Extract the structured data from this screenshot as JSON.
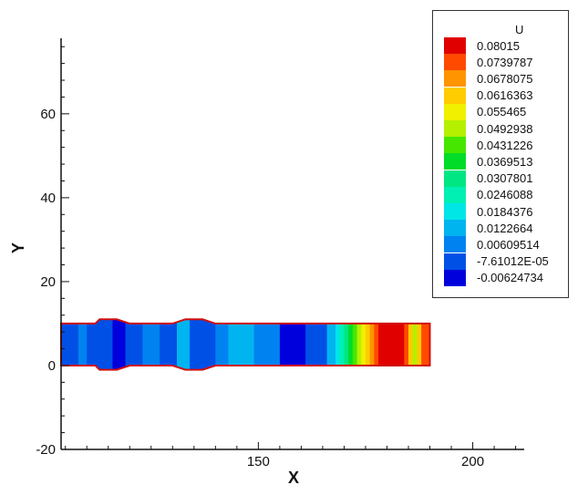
{
  "chart_data": {
    "type": "heatmap",
    "xlabel": "X",
    "ylabel": "Y",
    "xlim": [
      104,
      212
    ],
    "ylim": [
      -20,
      78
    ],
    "x_ticks": [
      150,
      200
    ],
    "y_ticks": [
      -20,
      0,
      20,
      40,
      60
    ],
    "x_tick_labels": [
      "150",
      "200"
    ],
    "y_tick_labels": [
      "-20",
      "0",
      "20",
      "40",
      "60"
    ],
    "grid": false,
    "legend": {
      "title": "U",
      "placement": "top-right",
      "levels": [
        {
          "label": "0.08015",
          "value": 0.08015,
          "color": "#e00000"
        },
        {
          "label": "0.0739787",
          "value": 0.0739787,
          "color": "#ff4a00"
        },
        {
          "label": "0.0678075",
          "value": 0.0678075,
          "color": "#ff9400"
        },
        {
          "label": "0.0616363",
          "value": 0.0616363,
          "color": "#ffcc00"
        },
        {
          "label": "0.055465",
          "value": 0.055465,
          "color": "#f0f000"
        },
        {
          "label": "0.0492938",
          "value": 0.0492938,
          "color": "#b4f000"
        },
        {
          "label": "0.0431226",
          "value": 0.0431226,
          "color": "#46e600"
        },
        {
          "label": "0.0369513",
          "value": 0.0369513,
          "color": "#00dc28"
        },
        {
          "label": "0.0307801",
          "value": 0.0307801,
          "color": "#00e682"
        },
        {
          "label": "0.0246088",
          "value": 0.0246088,
          "color": "#00f0b4"
        },
        {
          "label": "0.0184376",
          "value": 0.0184376,
          "color": "#00e6e6"
        },
        {
          "label": "0.0122664",
          "value": 0.0122664,
          "color": "#00b4f0"
        },
        {
          "label": "0.00609514",
          "value": 0.00609514,
          "color": "#0082f0"
        },
        {
          "label": "-7.61012E-05",
          "value": -7.61012e-05,
          "color": "#0050e6"
        },
        {
          "label": "-0.00624734",
          "value": -0.00624734,
          "color": "#0000dc"
        }
      ]
    },
    "domain_outline": {
      "color": "#d01010",
      "points": [
        [
          104,
          10
        ],
        [
          112,
          10
        ],
        [
          113,
          11
        ],
        [
          117,
          11
        ],
        [
          120,
          10
        ],
        [
          130,
          10
        ],
        [
          133,
          11
        ],
        [
          137,
          11
        ],
        [
          140,
          10
        ],
        [
          190,
          10
        ],
        [
          190,
          0
        ],
        [
          140,
          0
        ],
        [
          137,
          -1
        ],
        [
          133,
          -1
        ],
        [
          130,
          0
        ],
        [
          120,
          0
        ],
        [
          117,
          -1
        ],
        [
          113,
          -1
        ],
        [
          112,
          0
        ],
        [
          104,
          0
        ]
      ]
    },
    "field_bands": [
      {
        "x0": 104,
        "x1": 108,
        "level": 13
      },
      {
        "x0": 108,
        "x1": 110,
        "level": 12
      },
      {
        "x0": 110,
        "x1": 116,
        "level": 13
      },
      {
        "x0": 116,
        "x1": 119,
        "level": 14
      },
      {
        "x0": 119,
        "x1": 123,
        "level": 13
      },
      {
        "x0": 123,
        "x1": 127,
        "level": 12
      },
      {
        "x0": 127,
        "x1": 131,
        "level": 13
      },
      {
        "x0": 131,
        "x1": 134,
        "level": 11
      },
      {
        "x0": 134,
        "x1": 140,
        "level": 13
      },
      {
        "x0": 140,
        "x1": 143,
        "level": 12
      },
      {
        "x0": 143,
        "x1": 149,
        "level": 11
      },
      {
        "x0": 149,
        "x1": 155,
        "level": 12
      },
      {
        "x0": 155,
        "x1": 161,
        "level": 14
      },
      {
        "x0": 161,
        "x1": 166,
        "level": 13
      },
      {
        "x0": 166,
        "x1": 168,
        "level": 11
      },
      {
        "x0": 168,
        "x1": 169,
        "level": 10
      },
      {
        "x0": 169,
        "x1": 170,
        "level": 9
      },
      {
        "x0": 170,
        "x1": 171,
        "level": 8
      },
      {
        "x0": 171,
        "x1": 172,
        "level": 7
      },
      {
        "x0": 172,
        "x1": 173,
        "level": 6
      },
      {
        "x0": 173,
        "x1": 174,
        "level": 5
      },
      {
        "x0": 174,
        "x1": 175,
        "level": 4
      },
      {
        "x0": 175,
        "x1": 176,
        "level": 3
      },
      {
        "x0": 176,
        "x1": 177,
        "level": 2
      },
      {
        "x0": 177,
        "x1": 178,
        "level": 1
      },
      {
        "x0": 178,
        "x1": 184,
        "level": 0
      },
      {
        "x0": 184,
        "x1": 185,
        "level": 1
      },
      {
        "x0": 185,
        "x1": 186,
        "level": 3
      },
      {
        "x0": 186,
        "x1": 187,
        "level": 5
      },
      {
        "x0": 187,
        "x1": 188,
        "level": 3
      },
      {
        "x0": 188,
        "x1": 190,
        "level": 1
      }
    ]
  }
}
